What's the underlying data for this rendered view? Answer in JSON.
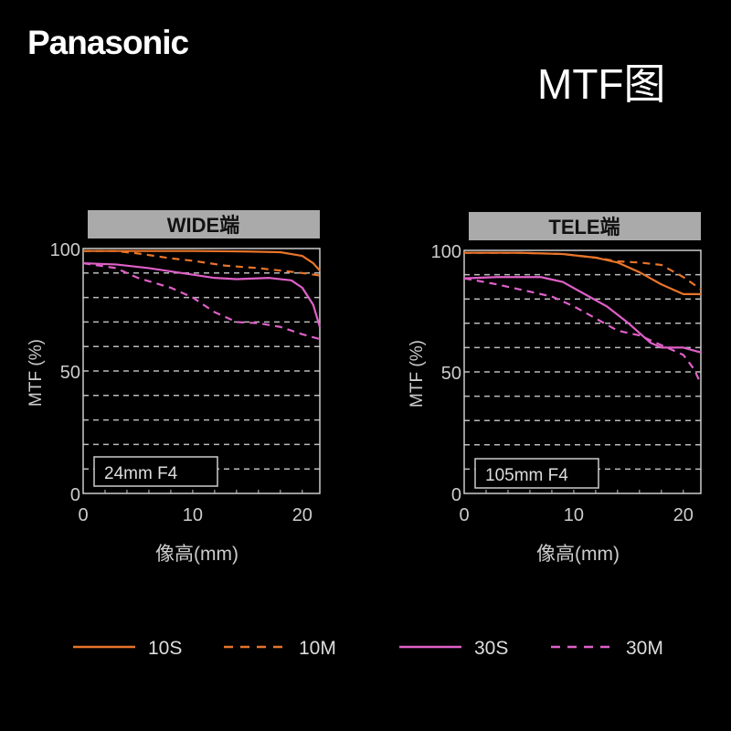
{
  "logo": "Panasonic",
  "page_title": "MTF图",
  "colors": {
    "10S": "#e8742a",
    "10M": "#e8742a",
    "30S": "#e060c8",
    "30M": "#e060c8",
    "panel_header": "#aaaaaa",
    "grid": "#bbbbbb"
  },
  "chart_data": [
    {
      "type": "line",
      "title": "WIDE端",
      "annotation": "24mm F4",
      "xlabel": "像高(mm)",
      "ylabel": "MTF (%)",
      "xlim": [
        0,
        21.6
      ],
      "ylim": [
        0,
        100
      ],
      "xticks": [
        "0",
        "10",
        "20"
      ],
      "yticks": [
        "0",
        "50",
        "100"
      ],
      "grid": true,
      "series": [
        {
          "name": "10S",
          "style": "solid",
          "x": [
            0,
            5,
            10,
            15,
            18,
            20,
            21,
            21.6
          ],
          "y": [
            99,
            99,
            99,
            98.8,
            98.5,
            97,
            94,
            91
          ]
        },
        {
          "name": "10M",
          "style": "dashed",
          "x": [
            0,
            3,
            5,
            8,
            10,
            13,
            16,
            18,
            20,
            21.6
          ],
          "y": [
            99,
            99,
            98,
            96,
            95,
            93,
            92,
            91,
            90,
            89
          ]
        },
        {
          "name": "30S",
          "style": "solid",
          "x": [
            0,
            3,
            6,
            9,
            12,
            14,
            17,
            19,
            20,
            21,
            21.6
          ],
          "y": [
            94,
            93.5,
            92,
            90,
            88,
            87.5,
            88,
            87,
            84,
            77,
            68
          ]
        },
        {
          "name": "30M",
          "style": "dashed",
          "x": [
            0,
            3,
            5,
            8,
            10,
            12,
            14,
            16,
            18,
            20,
            21.6
          ],
          "y": [
            94,
            92,
            88,
            84,
            80,
            74,
            70,
            69.5,
            68,
            65,
            63
          ]
        }
      ]
    },
    {
      "type": "line",
      "title": "TELE端",
      "annotation": "105mm F4",
      "xlabel": "像高(mm)",
      "ylabel": "MTF (%)",
      "xlim": [
        0,
        21.6
      ],
      "ylim": [
        0,
        100
      ],
      "xticks": [
        "0",
        "10",
        "20"
      ],
      "yticks": [
        "0",
        "50",
        "100"
      ],
      "grid": true,
      "series": [
        {
          "name": "10S",
          "style": "solid",
          "x": [
            0,
            5,
            9,
            12,
            14,
            16,
            18,
            20,
            21.6
          ],
          "y": [
            99,
            99,
            98.5,
            97,
            95,
            91,
            86,
            82,
            82
          ]
        },
        {
          "name": "10M",
          "style": "dashed",
          "x": [
            0,
            5,
            9,
            12,
            14,
            16,
            18,
            20,
            21.6
          ],
          "y": [
            99,
            99,
            98.5,
            97,
            95.5,
            95,
            94,
            89,
            84
          ]
        },
        {
          "name": "30S",
          "style": "solid",
          "x": [
            0,
            3,
            7,
            9,
            11,
            13,
            15,
            17,
            18,
            20,
            21.6
          ],
          "y": [
            88.5,
            89,
            89,
            87,
            82,
            77,
            70,
            62,
            60,
            60,
            58
          ]
        },
        {
          "name": "30M",
          "style": "dashed",
          "x": [
            0,
            3,
            5,
            8,
            10,
            12,
            14,
            16,
            18,
            20,
            21,
            21.6
          ],
          "y": [
            88.5,
            86,
            84,
            81,
            77,
            72,
            67,
            65,
            61,
            57,
            51,
            45
          ]
        }
      ]
    }
  ],
  "legend": [
    {
      "name": "10S",
      "style": "solid"
    },
    {
      "name": "10M",
      "style": "dashed"
    },
    {
      "name": "30S",
      "style": "solid"
    },
    {
      "name": "30M",
      "style": "dashed"
    }
  ]
}
